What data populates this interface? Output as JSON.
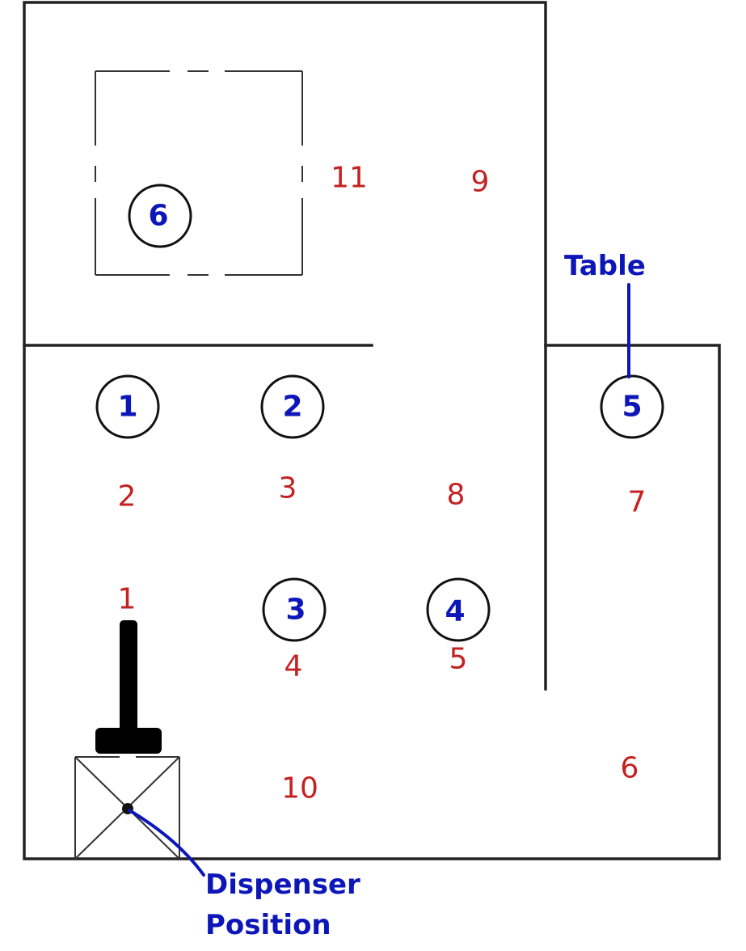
{
  "tables": [
    {
      "label": "1"
    },
    {
      "label": "2"
    },
    {
      "label": "3"
    },
    {
      "label": "4"
    },
    {
      "label": "5"
    },
    {
      "label": "6"
    }
  ],
  "positions": [
    {
      "label": "1"
    },
    {
      "label": "2"
    },
    {
      "label": "3"
    },
    {
      "label": "4"
    },
    {
      "label": "5"
    },
    {
      "label": "6"
    },
    {
      "label": "7"
    },
    {
      "label": "8"
    },
    {
      "label": "9"
    },
    {
      "label": "10"
    },
    {
      "label": "11"
    }
  ],
  "annotations": {
    "table_label": "Table",
    "dispenser_line1": "Dispenser",
    "dispenser_line2": "Position"
  },
  "colors": {
    "table_number": "#0d16b8",
    "position_number": "#c42222",
    "walls": "#222222"
  }
}
